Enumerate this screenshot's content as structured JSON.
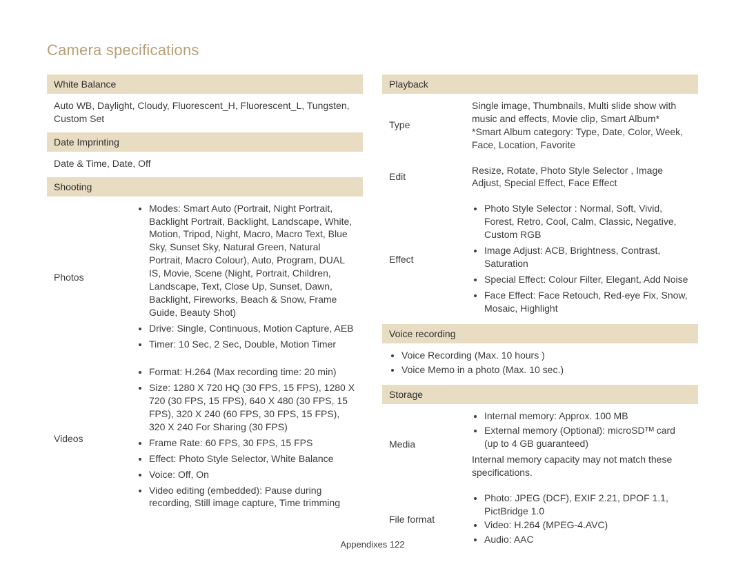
{
  "title": "Camera specifications",
  "footer": {
    "label": "Appendixes",
    "page": "122"
  },
  "colors": {
    "heading": "#b89e77",
    "section_bg": "#e8dcc3",
    "text": "#3c3c3c",
    "background": "#ffffff"
  },
  "left": {
    "white_balance": {
      "header": "White Balance",
      "text": "Auto WB, Daylight, Cloudy, Fluorescent_H, Fluorescent_L, Tungsten, Custom Set"
    },
    "date_imprinting": {
      "header": "Date Imprinting",
      "text": "Date & Time, Date, Off"
    },
    "shooting": {
      "header": "Shooting",
      "rows": [
        {
          "key": "Photos",
          "bullets": [
            "Modes: Smart Auto (Portrait, Night Portrait, Backlight Portrait, Backlight, Landscape, White, Motion, Tripod, Night, Macro, Macro Text, Blue Sky, Sunset Sky, Natural Green, Natural Portrait, Macro Colour), Auto, Program, DUAL IS, Movie, Scene (Night, Portrait, Children, Landscape, Text, Close Up, Sunset, Dawn, Backlight, Fireworks, Beach & Snow, Frame Guide, Beauty Shot)",
            "Drive: Single, Continuous, Motion Capture, AEB",
            "Timer: 10 Sec, 2 Sec, Double, Motion Timer"
          ]
        },
        {
          "key": "Videos",
          "bullets": [
            "Format: H.264 (Max recording time: 20 min)",
            "Size: 1280 X 720 HQ (30 FPS, 15 FPS), 1280 X 720 (30 FPS, 15 FPS), 640 X 480 (30 FPS, 15 FPS), 320 X 240 (60 FPS, 30 FPS, 15 FPS), 320 X 240 For Sharing (30 FPS)",
            "Frame Rate: 60 FPS, 30 FPS, 15 FPS",
            "Effect: Photo Style Selector, White Balance",
            "Voice: Off, On",
            "Video editing (embedded): Pause during recording, Still image capture, Time trimming"
          ]
        }
      ]
    }
  },
  "right": {
    "playback": {
      "header": "Playback",
      "rows": [
        {
          "key": "Type",
          "text": "Single image, Thumbnails, Multi slide show with music and effects, Movie clip, Smart Album*\n*Smart Album category: Type, Date, Color, Week, Face, Location, Favorite"
        },
        {
          "key": "Edit",
          "text": "Resize, Rotate, Photo Style Selector , Image Adjust, Special Effect, Face Effect"
        },
        {
          "key": "Effect",
          "bullets": [
            "Photo Style Selector : Normal, Soft, Vivid, Forest, Retro, Cool, Calm, Classic, Negative, Custom RGB",
            "Image Adjust: ACB, Brightness, Contrast, Saturation",
            "Special Effect: Colour Filter, Elegant, Add Noise",
            "Face Effect: Face Retouch, Red-eye Fix, Snow, Mosaic, Highlight"
          ]
        }
      ]
    },
    "voice_recording": {
      "header": "Voice recording",
      "bullets": [
        "Voice Recording (Max. 10 hours )",
        "Voice Memo in a photo (Max. 10 sec.)"
      ]
    },
    "storage": {
      "header": "Storage",
      "rows": [
        {
          "key": "Media",
          "bullets": [
            "Internal memory: Approx. 100 MB",
            "External memory (Optional): microSDᵀᴹ card (up to 4 GB guaranteed)"
          ],
          "note": "Internal memory capacity may not match these specifications."
        },
        {
          "key": "File format",
          "bullets": [
            "Photo: JPEG (DCF), EXIF 2.21, DPOF 1.1, PictBridge 1.0",
            "Video: H.264 (MPEG-4.AVC)",
            "Audio: AAC"
          ]
        }
      ]
    }
  }
}
